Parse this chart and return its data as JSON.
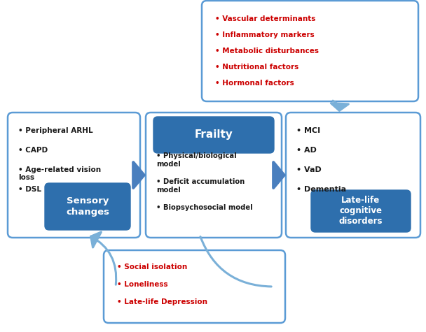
{
  "fig_bg": "#ffffff",
  "blue_box_color": "#2e6fad",
  "white_box_edge": "#5b9bd5",
  "red_text_color": "#cc0000",
  "white_text_color": "#ffffff",
  "dark_text_color": "#1a1a1a",
  "arrow_color_blue": "#4a7fbe",
  "arrow_color_light": "#7ab0d8",
  "sensory_label": "Sensory\nchanges",
  "sensory_bullets": [
    "Peripheral ARHL",
    "CAPD",
    "Age-related vision\nloss",
    "DSL"
  ],
  "frailty_label": "Frailty",
  "frailty_bullets": [
    "Physical/biological\nmodel",
    "Deficit accumulation\nmodel",
    "Biopsychosocial model"
  ],
  "cognitive_label": "Late-life\ncognitive\ndisorders",
  "cognitive_bullets": [
    "MCI",
    "AD",
    "VaD",
    "Dementia"
  ],
  "top_box_bullets": [
    "Vascular determinants",
    "Inflammatory markers",
    "Metabolic disturbances",
    "Nutritional factors",
    "Hormonal factors"
  ],
  "bottom_box_bullets": [
    "Social isolation",
    "Loneliness",
    "Late-life Depression"
  ]
}
